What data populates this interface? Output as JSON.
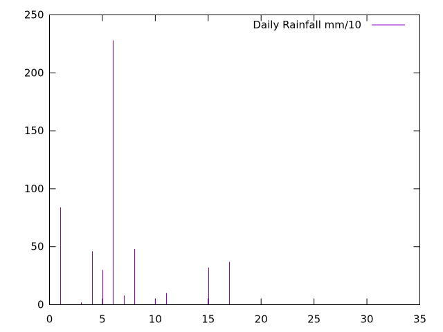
{
  "chart_data": {
    "type": "impulse",
    "series": [
      {
        "name": "Daily Rainfall mm/10",
        "color": "#9400d3",
        "x": [
          1,
          3,
          4,
          5,
          6,
          7,
          8,
          10,
          11,
          15,
          17
        ],
        "values": [
          84,
          2,
          46,
          30,
          228,
          8,
          48,
          4,
          10,
          32,
          37
        ]
      }
    ],
    "xlim": [
      0,
      35
    ],
    "ylim": [
      0,
      250
    ],
    "xticks": [
      0,
      5,
      10,
      15,
      20,
      25,
      30,
      35
    ],
    "yticks": [
      0,
      50,
      100,
      150,
      200,
      250
    ],
    "grid": false,
    "legend_position": "top-right"
  }
}
